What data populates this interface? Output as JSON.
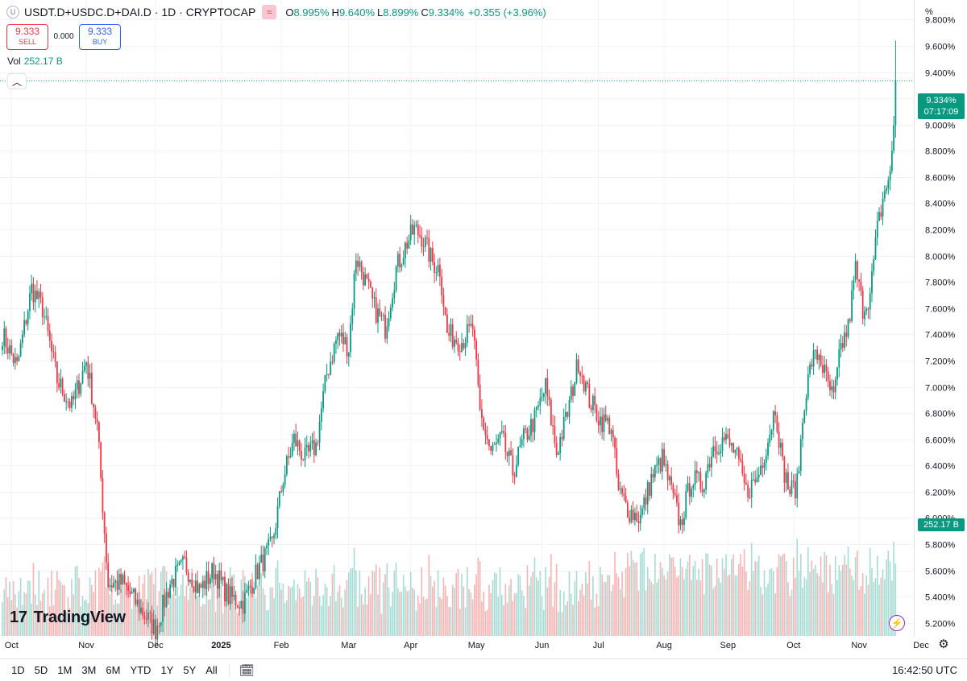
{
  "header": {
    "badge_glyph": "U",
    "symbol": "USDT.D+USDC.D+DAI.D · 1D · CRYPTOCAP",
    "indicator_glyph": "≈",
    "open_label": "O",
    "open": "8.995%",
    "high_label": "H",
    "high": "9.640%",
    "low_label": "L",
    "low": "8.899%",
    "close_label": "C",
    "close": "9.334%",
    "change": "+0.355 (+3.96%)"
  },
  "trade": {
    "sell_price": "9.333",
    "sell_label": "SELL",
    "spread": "0.000",
    "buy_price": "9.333",
    "buy_label": "BUY"
  },
  "volume": {
    "label": "Vol",
    "value": "252.17 B"
  },
  "controls": {
    "collapse_glyph": "︿",
    "unit": "%",
    "bolt_glyph": "⚡",
    "gear_glyph": "⚙",
    "calendar_glyph": "🗓"
  },
  "price_tag": {
    "value": "9.334%",
    "countdown": "07:17:09"
  },
  "volume_tag": "252.17 B",
  "watermark": {
    "mark": "17",
    "text": "TradingView"
  },
  "ranges": [
    "1D",
    "5D",
    "1M",
    "3M",
    "6M",
    "YTD",
    "1Y",
    "5Y",
    "All"
  ],
  "clock": "16:42:50 UTC",
  "colors": {
    "up": "#089981",
    "down": "#f23645",
    "up_vol": "#a6dcd4",
    "down_vol": "#f9b3b3"
  },
  "chart_data": {
    "type": "candlestick",
    "symbol": "USDT.D+USDC.D+DAI.D",
    "timeframe": "1D",
    "ylim": [
      5.1,
      9.95
    ],
    "y_ticks": [
      "9.800%",
      "9.600%",
      "9.400%",
      "9.200%",
      "9.000%",
      "8.800%",
      "8.600%",
      "8.400%",
      "8.200%",
      "8.000%",
      "7.800%",
      "7.600%",
      "7.400%",
      "7.200%",
      "7.000%",
      "6.800%",
      "6.600%",
      "6.400%",
      "6.200%",
      "6.000%",
      "5.800%",
      "5.600%",
      "5.400%",
      "5.200%"
    ],
    "x_ticks": [
      "Oct",
      "Nov",
      "Dec",
      "2025",
      "Feb",
      "Mar",
      "Apr",
      "May",
      "Jun",
      "Jul",
      "Aug",
      "Sep",
      "Oct",
      "Nov",
      "Dec"
    ],
    "x_ticks_bold": [
      "2025"
    ],
    "last_price": 9.334,
    "close_path": [
      {
        "day": 0,
        "value": 7.4
      },
      {
        "day": 8,
        "value": 7.15
      },
      {
        "day": 16,
        "value": 7.75
      },
      {
        "day": 22,
        "value": 7.6
      },
      {
        "day": 30,
        "value": 7.05
      },
      {
        "day": 38,
        "value": 6.85
      },
      {
        "day": 46,
        "value": 7.2
      },
      {
        "day": 52,
        "value": 6.7
      },
      {
        "day": 58,
        "value": 5.5
      },
      {
        "day": 66,
        "value": 5.5
      },
      {
        "day": 76,
        "value": 5.3
      },
      {
        "day": 84,
        "value": 5.15
      },
      {
        "day": 92,
        "value": 5.5
      },
      {
        "day": 100,
        "value": 5.65
      },
      {
        "day": 108,
        "value": 5.45
      },
      {
        "day": 116,
        "value": 5.6
      },
      {
        "day": 124,
        "value": 5.4
      },
      {
        "day": 132,
        "value": 5.35
      },
      {
        "day": 140,
        "value": 5.6
      },
      {
        "day": 148,
        "value": 5.8
      },
      {
        "day": 154,
        "value": 6.3
      },
      {
        "day": 160,
        "value": 6.6
      },
      {
        "day": 166,
        "value": 6.45
      },
      {
        "day": 172,
        "value": 6.55
      },
      {
        "day": 178,
        "value": 7.1
      },
      {
        "day": 184,
        "value": 7.4
      },
      {
        "day": 190,
        "value": 7.3
      },
      {
        "day": 194,
        "value": 8.0
      },
      {
        "day": 198,
        "value": 7.85
      },
      {
        "day": 204,
        "value": 7.6
      },
      {
        "day": 210,
        "value": 7.45
      },
      {
        "day": 216,
        "value": 7.9
      },
      {
        "day": 222,
        "value": 8.1
      },
      {
        "day": 226,
        "value": 8.2
      },
      {
        "day": 230,
        "value": 8.15
      },
      {
        "day": 236,
        "value": 7.95
      },
      {
        "day": 240,
        "value": 7.9
      },
      {
        "day": 244,
        "value": 7.4
      },
      {
        "day": 252,
        "value": 7.35
      },
      {
        "day": 258,
        "value": 7.45
      },
      {
        "day": 262,
        "value": 6.8
      },
      {
        "day": 268,
        "value": 6.5
      },
      {
        "day": 274,
        "value": 6.6
      },
      {
        "day": 280,
        "value": 6.35
      },
      {
        "day": 286,
        "value": 6.6
      },
      {
        "day": 292,
        "value": 6.75
      },
      {
        "day": 298,
        "value": 7.0
      },
      {
        "day": 304,
        "value": 6.5
      },
      {
        "day": 310,
        "value": 6.8
      },
      {
        "day": 316,
        "value": 7.2
      },
      {
        "day": 322,
        "value": 6.9
      },
      {
        "day": 328,
        "value": 6.75
      },
      {
        "day": 334,
        "value": 6.7
      },
      {
        "day": 338,
        "value": 6.2
      },
      {
        "day": 344,
        "value": 6.05
      },
      {
        "day": 350,
        "value": 6.0
      },
      {
        "day": 356,
        "value": 6.3
      },
      {
        "day": 362,
        "value": 6.45
      },
      {
        "day": 368,
        "value": 6.15
      },
      {
        "day": 372,
        "value": 5.95
      },
      {
        "day": 378,
        "value": 6.3
      },
      {
        "day": 384,
        "value": 6.25
      },
      {
        "day": 390,
        "value": 6.55
      },
      {
        "day": 396,
        "value": 6.6
      },
      {
        "day": 402,
        "value": 6.5
      },
      {
        "day": 408,
        "value": 6.2
      },
      {
        "day": 414,
        "value": 6.3
      },
      {
        "day": 420,
        "value": 6.6
      },
      {
        "day": 424,
        "value": 6.85
      },
      {
        "day": 428,
        "value": 6.4
      },
      {
        "day": 432,
        "value": 6.2
      },
      {
        "day": 436,
        "value": 6.25
      },
      {
        "day": 440,
        "value": 6.9
      },
      {
        "day": 444,
        "value": 7.2
      },
      {
        "day": 448,
        "value": 7.25
      },
      {
        "day": 452,
        "value": 7.05
      },
      {
        "day": 456,
        "value": 6.9
      },
      {
        "day": 460,
        "value": 7.3
      },
      {
        "day": 464,
        "value": 7.45
      },
      {
        "day": 468,
        "value": 7.9
      },
      {
        "day": 472,
        "value": 7.6
      },
      {
        "day": 476,
        "value": 7.7
      },
      {
        "day": 480,
        "value": 8.2
      },
      {
        "day": 484,
        "value": 8.5
      },
      {
        "day": 487,
        "value": 8.6
      },
      {
        "day": 489,
        "value": 8.995
      },
      {
        "day": 490,
        "value": 9.334
      }
    ]
  }
}
